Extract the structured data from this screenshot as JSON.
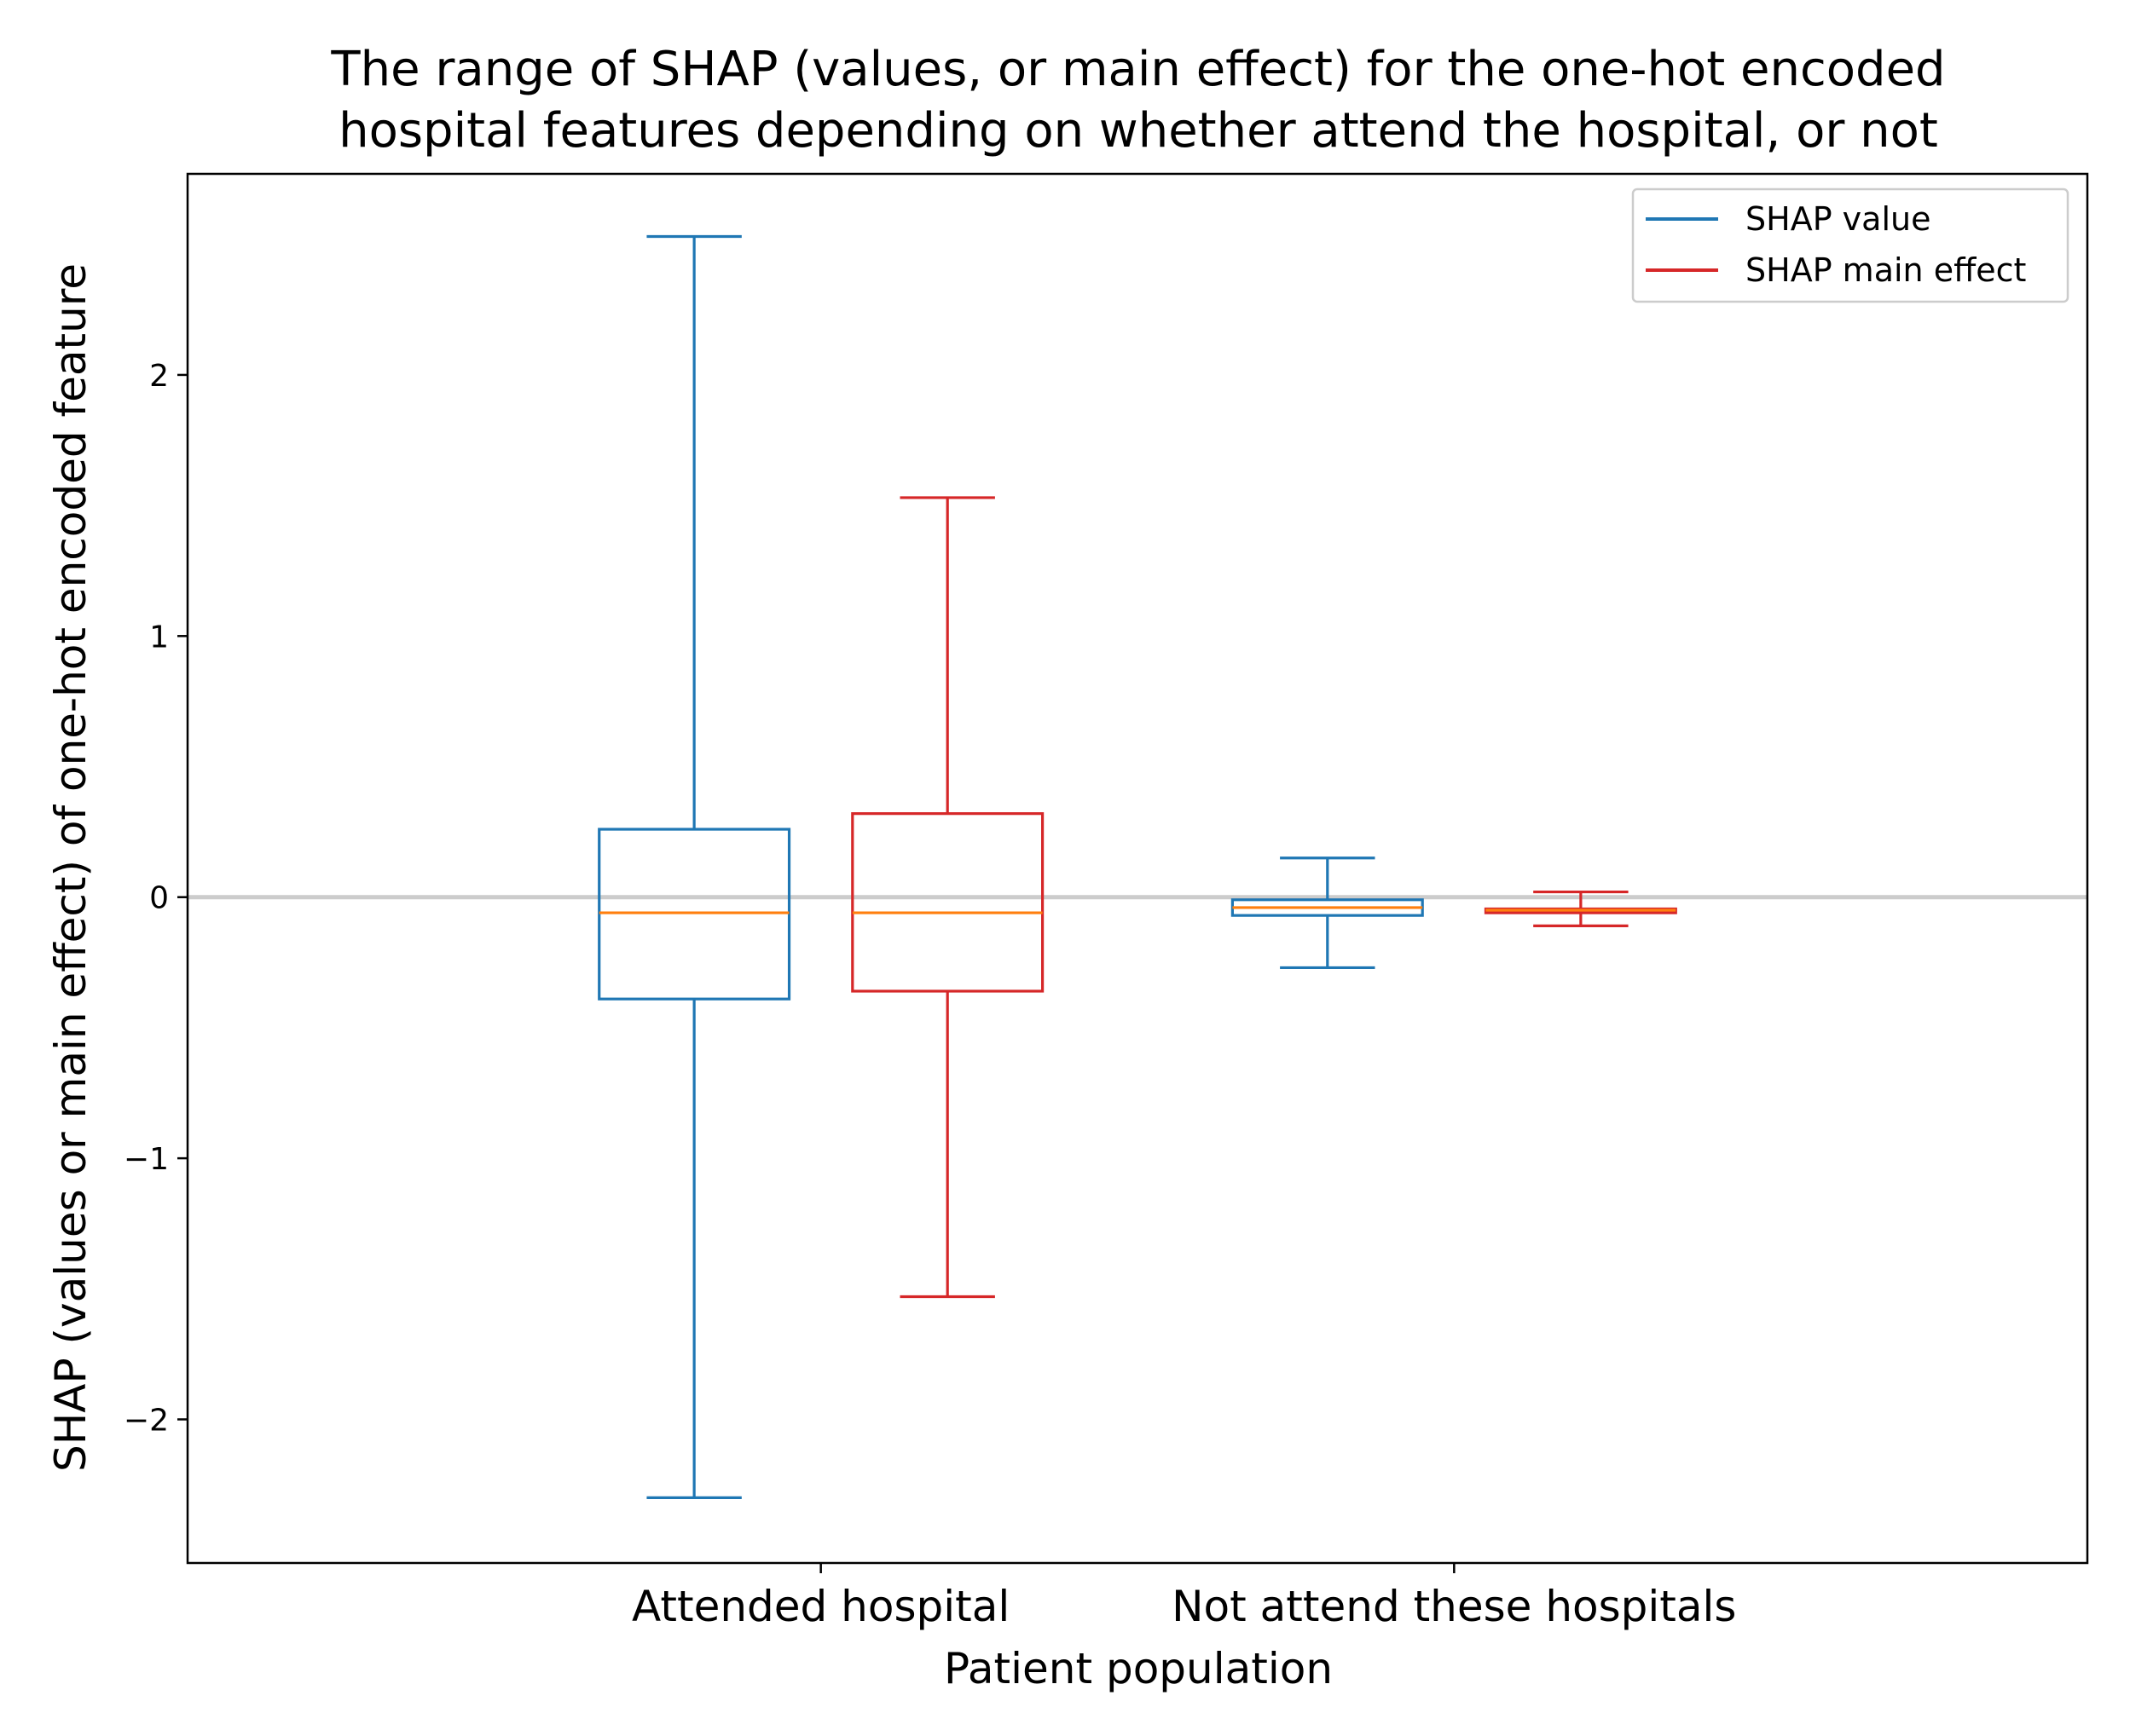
{
  "chart_data": {
    "type": "box",
    "title_lines": [
      "The range of SHAP (values, or main effect) for the one-hot encoded",
      "hospital features depending on whether attend the hospital, or not"
    ],
    "xlabel": "Patient population",
    "ylabel": "SHAP (values or main effect) of one-hot encoded feature",
    "categories": [
      "Attended hospital",
      "Not attend these hospitals"
    ],
    "ylim": [
      -2.55,
      2.77
    ],
    "yticks": [
      -2,
      -1,
      0,
      1,
      2
    ],
    "ytick_labels": [
      "−2",
      "−1",
      "0",
      "1",
      "2"
    ],
    "reference_line": {
      "y": 0,
      "color": "#cccccc"
    },
    "legend": {
      "position": "top-right"
    },
    "median_color": "#ff7f0e",
    "series": [
      {
        "name": "SHAP value",
        "color": "#1f77b4",
        "boxes": [
          {
            "whisker_low": -2.3,
            "q1": -0.39,
            "median": -0.06,
            "q3": 0.26,
            "whisker_high": 2.53
          },
          {
            "whisker_low": -0.27,
            "q1": -0.07,
            "median": -0.04,
            "q3": -0.01,
            "whisker_high": 0.15
          }
        ]
      },
      {
        "name": "SHAP main effect",
        "color": "#d62728",
        "boxes": [
          {
            "whisker_low": -1.53,
            "q1": -0.36,
            "median": -0.06,
            "q3": 0.32,
            "whisker_high": 1.53
          },
          {
            "whisker_low": -0.11,
            "q1": -0.06,
            "median": -0.05,
            "q3": -0.045,
            "whisker_high": 0.02
          }
        ]
      }
    ]
  }
}
